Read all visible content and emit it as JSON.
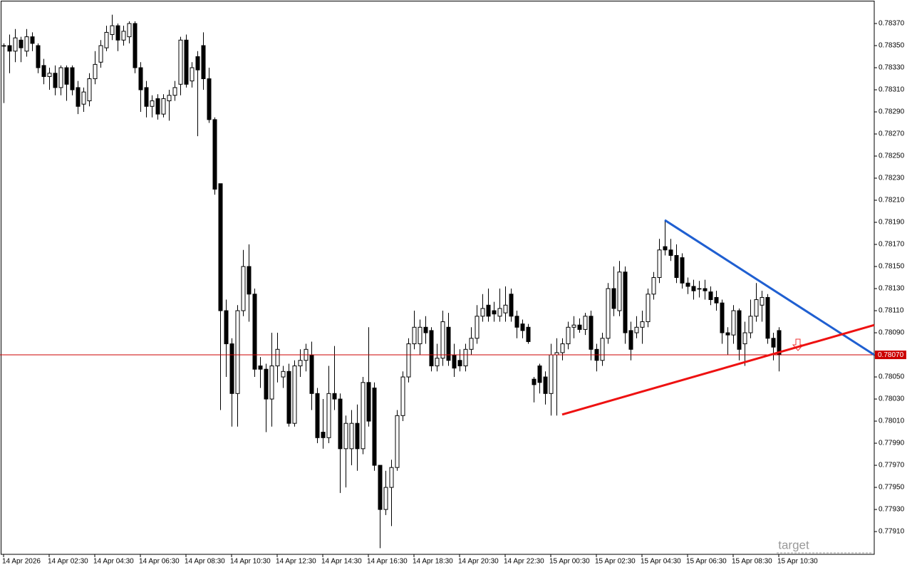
{
  "chart_data": {
    "type": "candlestick",
    "up_color": "#ffffff",
    "down_color": "#000000",
    "wick_color": "#000000",
    "ylim": [
      0.778894,
      0.783913
    ],
    "yticks": [
      {
        "value": 0.7837,
        "label": "0.78370"
      },
      {
        "value": 0.7835,
        "label": "0.78350"
      },
      {
        "value": 0.7833,
        "label": "0.78330"
      },
      {
        "value": 0.7831,
        "label": "0.78310"
      },
      {
        "value": 0.7829,
        "label": "0.78290"
      },
      {
        "value": 0.7827,
        "label": "0.78270"
      },
      {
        "value": 0.7825,
        "label": "0.78250"
      },
      {
        "value": 0.7823,
        "label": "0.78230"
      },
      {
        "value": 0.7821,
        "label": "0.78210"
      },
      {
        "value": 0.7819,
        "label": "0.78190"
      },
      {
        "value": 0.7817,
        "label": "0.78170"
      },
      {
        "value": 0.7815,
        "label": "0.78150"
      },
      {
        "value": 0.7813,
        "label": "0.78130"
      },
      {
        "value": 0.7811,
        "label": "0.78110"
      },
      {
        "value": 0.7809,
        "label": "0.78090"
      },
      {
        "value": 0.7807,
        "label": "0.78070"
      },
      {
        "value": 0.7805,
        "label": "0.78050"
      },
      {
        "value": 0.7803,
        "label": "0.78030"
      },
      {
        "value": 0.7801,
        "label": "0.78010"
      },
      {
        "value": 0.7799,
        "label": "0.77990"
      },
      {
        "value": 0.7797,
        "label": "0.77970"
      },
      {
        "value": 0.7795,
        "label": "0.77950"
      },
      {
        "value": 0.7793,
        "label": "0.77930"
      },
      {
        "value": 0.7791,
        "label": "0.77910"
      }
    ],
    "xticks": [
      {
        "value": 0,
        "label": "14 Apr 2026"
      },
      {
        "value": 8,
        "label": "14 Apr 02:30"
      },
      {
        "value": 16,
        "label": "14 Apr 04:30"
      },
      {
        "value": 24,
        "label": "14 Apr 06:30"
      },
      {
        "value": 32,
        "label": "14 Apr 08:30"
      },
      {
        "value": 40,
        "label": "14 Apr 10:30"
      },
      {
        "value": 48,
        "label": "14 Apr 12:30"
      },
      {
        "value": 56,
        "label": "14 Apr 14:30"
      },
      {
        "value": 64,
        "label": "14 Apr 16:30"
      },
      {
        "value": 72,
        "label": "14 Apr 18:30"
      },
      {
        "value": 80,
        "label": "14 Apr 20:30"
      },
      {
        "value": 88,
        "label": "14 Apr 22:30"
      },
      {
        "value": 96,
        "label": "15 Apr 00:30"
      },
      {
        "value": 104,
        "label": "15 Apr 02:30"
      },
      {
        "value": 112,
        "label": "15 Apr 04:30"
      },
      {
        "value": 120,
        "label": "15 Apr 06:30"
      },
      {
        "value": 128,
        "label": "15 Apr 08:30"
      },
      {
        "value": 136,
        "label": "15 Apr 10:30"
      }
    ],
    "ohlc": [
      [
        0.7835,
        0.78352,
        0.78298,
        0.7835
      ],
      [
        0.7835,
        0.7836,
        0.78325,
        0.78345
      ],
      [
        0.78345,
        0.78365,
        0.78335,
        0.78357
      ],
      [
        0.78355,
        0.78358,
        0.78335,
        0.78348
      ],
      [
        0.78345,
        0.78365,
        0.7834,
        0.78358
      ],
      [
        0.78358,
        0.78362,
        0.78345,
        0.78352
      ],
      [
        0.7835,
        0.78352,
        0.78325,
        0.7833
      ],
      [
        0.78332,
        0.78338,
        0.78315,
        0.78322
      ],
      [
        0.78322,
        0.7833,
        0.7831,
        0.78325
      ],
      [
        0.78325,
        0.78332,
        0.78305,
        0.78312
      ],
      [
        0.78312,
        0.78332,
        0.78305,
        0.7833
      ],
      [
        0.7833,
        0.78332,
        0.783,
        0.78315
      ],
      [
        0.7833,
        0.78332,
        0.78305,
        0.7831
      ],
      [
        0.78312,
        0.78318,
        0.78288,
        0.78295
      ],
      [
        0.78297,
        0.78312,
        0.7829,
        0.78308
      ],
      [
        0.783,
        0.78325,
        0.78295,
        0.7832
      ],
      [
        0.7832,
        0.78345,
        0.78315,
        0.78333
      ],
      [
        0.78335,
        0.78355,
        0.7833,
        0.7835
      ],
      [
        0.78348,
        0.78368,
        0.78345,
        0.78362
      ],
      [
        0.7836,
        0.78378,
        0.78355,
        0.78368
      ],
      [
        0.78368,
        0.7837,
        0.78345,
        0.78355
      ],
      [
        0.78355,
        0.78368,
        0.7835,
        0.78363
      ],
      [
        0.78358,
        0.78372,
        0.78352,
        0.7837
      ],
      [
        0.7837,
        0.78372,
        0.78325,
        0.7833
      ],
      [
        0.7833,
        0.78335,
        0.7829,
        0.7831
      ],
      [
        0.78312,
        0.78318,
        0.78285,
        0.78295
      ],
      [
        0.78295,
        0.78305,
        0.78285,
        0.783
      ],
      [
        0.78302,
        0.78306,
        0.78283,
        0.78288
      ],
      [
        0.78288,
        0.78306,
        0.78285,
        0.78302
      ],
      [
        0.783,
        0.7831,
        0.78282,
        0.78305
      ],
      [
        0.78305,
        0.78318,
        0.783,
        0.78312
      ],
      [
        0.78315,
        0.78358,
        0.78305,
        0.78355
      ],
      [
        0.78355,
        0.7836,
        0.78312,
        0.78315
      ],
      [
        0.78318,
        0.78335,
        0.78312,
        0.7833
      ],
      [
        0.7834,
        0.78345,
        0.78268,
        0.78328
      ],
      [
        0.7835,
        0.78362,
        0.7831,
        0.7832
      ],
      [
        0.7832,
        0.7833,
        0.7828,
        0.78283
      ],
      [
        0.78283,
        0.78285,
        0.78215,
        0.7822
      ],
      [
        0.78225,
        0.78225,
        0.7802,
        0.7811
      ],
      [
        0.7811,
        0.7812,
        0.7805,
        0.7808
      ],
      [
        0.7808,
        0.78085,
        0.78005,
        0.78035
      ],
      [
        0.78035,
        0.78115,
        0.78005,
        0.7811
      ],
      [
        0.7811,
        0.78165,
        0.78105,
        0.7815
      ],
      [
        0.7815,
        0.7817,
        0.781,
        0.78125
      ],
      [
        0.78125,
        0.7813,
        0.7805,
        0.78057
      ],
      [
        0.7806,
        0.78068,
        0.7804,
        0.78057
      ],
      [
        0.78057,
        0.78062,
        0.78,
        0.7803
      ],
      [
        0.7803,
        0.7809,
        0.78005,
        0.7806
      ],
      [
        0.7806,
        0.7809,
        0.78045,
        0.78075
      ],
      [
        0.7805,
        0.7806,
        0.7804,
        0.78055
      ],
      [
        0.78055,
        0.78062,
        0.78005,
        0.78008
      ],
      [
        0.78008,
        0.78065,
        0.78005,
        0.7806
      ],
      [
        0.7806,
        0.78075,
        0.7805,
        0.78065
      ],
      [
        0.78065,
        0.7808,
        0.78055,
        0.78075
      ],
      [
        0.7807,
        0.78082,
        0.7802,
        0.78035
      ],
      [
        0.78035,
        0.7804,
        0.7799,
        0.77995
      ],
      [
        0.78,
        0.7803,
        0.77985,
        0.77995
      ],
      [
        0.77995,
        0.7806,
        0.7799,
        0.78035
      ],
      [
        0.78035,
        0.78078,
        0.7802,
        0.7803
      ],
      [
        0.7803,
        0.78035,
        0.77945,
        0.77985
      ],
      [
        0.77985,
        0.78015,
        0.7795,
        0.78008
      ],
      [
        0.77985,
        0.7802,
        0.7797,
        0.78008
      ],
      [
        0.78008,
        0.78025,
        0.77965,
        0.77985
      ],
      [
        0.77985,
        0.7805,
        0.7798,
        0.78045
      ],
      [
        0.78045,
        0.78095,
        0.78005,
        0.7801
      ],
      [
        0.7804,
        0.78045,
        0.77965,
        0.7797
      ],
      [
        0.7797,
        0.7797,
        0.77895,
        0.7793
      ],
      [
        0.7793,
        0.77965,
        0.77925,
        0.7795
      ],
      [
        0.7795,
        0.77975,
        0.77915,
        0.77968
      ],
      [
        0.77968,
        0.7802,
        0.77965,
        0.78015
      ],
      [
        0.78015,
        0.78055,
        0.7801,
        0.7805
      ],
      [
        0.7805,
        0.78085,
        0.78045,
        0.7808
      ],
      [
        0.7808,
        0.7811,
        0.78075,
        0.78095
      ],
      [
        0.7808,
        0.78102,
        0.7807,
        0.78095
      ],
      [
        0.78095,
        0.78105,
        0.7808,
        0.7809
      ],
      [
        0.78092,
        0.78095,
        0.78055,
        0.7806
      ],
      [
        0.7806,
        0.7808,
        0.78055,
        0.78067
      ],
      [
        0.78067,
        0.7811,
        0.7806,
        0.781
      ],
      [
        0.78095,
        0.78108,
        0.7806,
        0.78065
      ],
      [
        0.7807,
        0.7808,
        0.7805,
        0.78058
      ],
      [
        0.78065,
        0.78075,
        0.78055,
        0.7806
      ],
      [
        0.7806,
        0.7808,
        0.78055,
        0.78075
      ],
      [
        0.78075,
        0.78095,
        0.7807,
        0.78085
      ],
      [
        0.78085,
        0.78115,
        0.7808,
        0.78105
      ],
      [
        0.78105,
        0.78125,
        0.781,
        0.78112
      ],
      [
        0.78115,
        0.7813,
        0.781,
        0.78105
      ],
      [
        0.7811,
        0.78118,
        0.781,
        0.78107
      ],
      [
        0.78105,
        0.7813,
        0.781,
        0.78112
      ],
      [
        0.78108,
        0.78132,
        0.781,
        0.78115
      ],
      [
        0.78125,
        0.7813,
        0.781,
        0.78105
      ],
      [
        0.78105,
        0.7811,
        0.78085,
        0.78095
      ],
      [
        0.78098,
        0.78102,
        0.78085,
        0.78092
      ],
      [
        0.78095,
        0.78098,
        0.7808,
        0.78082
      ],
      [
        0.78048,
        0.7805,
        0.78027,
        0.78043
      ],
      [
        0.7806,
        0.78062,
        0.78035,
        0.78045
      ],
      [
        0.7805,
        0.78055,
        0.78025,
        0.78035
      ],
      [
        0.78035,
        0.7808,
        0.78015,
        0.7807
      ],
      [
        0.7807,
        0.78085,
        0.78015,
        0.78072
      ],
      [
        0.78072,
        0.78085,
        0.78065,
        0.7808
      ],
      [
        0.7808,
        0.781,
        0.78075,
        0.78095
      ],
      [
        0.78095,
        0.78105,
        0.78085,
        0.78097
      ],
      [
        0.78097,
        0.78103,
        0.7809,
        0.78093
      ],
      [
        0.78093,
        0.78108,
        0.78088,
        0.78105
      ],
      [
        0.78105,
        0.7811,
        0.78065,
        0.78075
      ],
      [
        0.78075,
        0.7808,
        0.78055,
        0.78065
      ],
      [
        0.78065,
        0.7809,
        0.7806,
        0.78085
      ],
      [
        0.78085,
        0.78135,
        0.7808,
        0.7813
      ],
      [
        0.7813,
        0.7815,
        0.78105,
        0.78112
      ],
      [
        0.7811,
        0.78155,
        0.78105,
        0.78145
      ],
      [
        0.78145,
        0.7815,
        0.7808,
        0.7809
      ],
      [
        0.78092,
        0.781,
        0.78065,
        0.78075
      ],
      [
        0.7809,
        0.78105,
        0.78085,
        0.78095
      ],
      [
        0.78095,
        0.7811,
        0.7808,
        0.781
      ],
      [
        0.781,
        0.7813,
        0.78095,
        0.78125
      ],
      [
        0.78125,
        0.78145,
        0.7812,
        0.7814
      ],
      [
        0.7814,
        0.78175,
        0.78135,
        0.78165
      ],
      [
        0.78168,
        0.78192,
        0.7816,
        0.78165
      ],
      [
        0.78165,
        0.78175,
        0.78155,
        0.7816
      ],
      [
        0.7816,
        0.7817,
        0.78135,
        0.7814
      ],
      [
        0.78158,
        0.78162,
        0.7813,
        0.78135
      ],
      [
        0.78135,
        0.7814,
        0.78125,
        0.78132
      ],
      [
        0.78132,
        0.78138,
        0.7812,
        0.78128
      ],
      [
        0.7813,
        0.78137,
        0.78122,
        0.7813
      ],
      [
        0.7813,
        0.78138,
        0.7812,
        0.78128
      ],
      [
        0.78127,
        0.78132,
        0.78115,
        0.7812
      ],
      [
        0.78122,
        0.78128,
        0.7811,
        0.78117
      ],
      [
        0.78117,
        0.7812,
        0.7808,
        0.7809
      ],
      [
        0.7809,
        0.78095,
        0.7807,
        0.78088
      ],
      [
        0.78088,
        0.78115,
        0.7808,
        0.7811
      ],
      [
        0.7811,
        0.78112,
        0.78065,
        0.78075
      ],
      [
        0.7808,
        0.781,
        0.7806,
        0.7809
      ],
      [
        0.7809,
        0.7812,
        0.78085,
        0.78105
      ],
      [
        0.78105,
        0.78135,
        0.781,
        0.7812
      ],
      [
        0.78115,
        0.78128,
        0.781,
        0.78122
      ],
      [
        0.78122,
        0.78125,
        0.7808,
        0.78085
      ],
      [
        0.78085,
        0.7809,
        0.78065,
        0.78077
      ],
      [
        0.78092,
        0.78095,
        0.78055,
        0.7807
      ]
    ],
    "trendlines": [
      {
        "color": "#1f5fd1",
        "x": [
          116,
          152.75
        ],
        "y": [
          0.78192,
          0.7807
        ]
      },
      {
        "color": "#ee1111",
        "x": [
          98,
          152.75
        ],
        "y": [
          0.78016,
          0.78097
        ]
      }
    ],
    "price_line": {
      "value": 0.7807,
      "label": "0.78070",
      "color": "#cc0000"
    },
    "annotation": "target"
  }
}
